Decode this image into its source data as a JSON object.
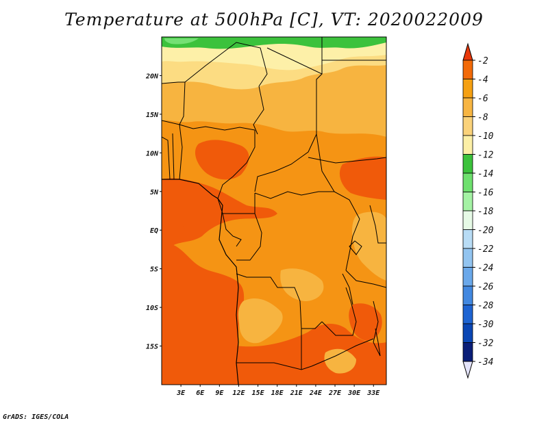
{
  "title": "Temperature at 500hPa [C], VT: 2020022009",
  "footer": "GrADS: IGES/COLA",
  "map": {
    "lat_range": [
      -20,
      25
    ],
    "lon_range": [
      0,
      35
    ],
    "lat_labels": [
      {
        "lat": 20,
        "text": "20N"
      },
      {
        "lat": 15,
        "text": "15N"
      },
      {
        "lat": 10,
        "text": "10N"
      },
      {
        "lat": 5,
        "text": "5N"
      },
      {
        "lat": 0,
        "text": "EQ"
      },
      {
        "lat": -5,
        "text": "5S"
      },
      {
        "lat": -10,
        "text": "10S"
      },
      {
        "lat": -15,
        "text": "15S"
      }
    ],
    "lon_labels": [
      {
        "lon": 3,
        "text": "3E"
      },
      {
        "lon": 6,
        "text": "6E"
      },
      {
        "lon": 9,
        "text": "9E"
      },
      {
        "lon": 12,
        "text": "12E"
      },
      {
        "lon": 15,
        "text": "15E"
      },
      {
        "lon": 18,
        "text": "18E"
      },
      {
        "lon": 21,
        "text": "21E"
      },
      {
        "lon": 24,
        "text": "24E"
      },
      {
        "lon": 27,
        "text": "27E"
      },
      {
        "lon": 30,
        "text": "30E"
      },
      {
        "lon": 33,
        "text": "33E"
      }
    ]
  },
  "colorbar": {
    "labels": [
      "-2",
      "-4",
      "-6",
      "-8",
      "-10",
      "-12",
      "-14",
      "-16",
      "-18",
      "-20",
      "-22",
      "-24",
      "-26",
      "-28",
      "-30",
      "-32",
      "-34"
    ],
    "colors": [
      "#e8380a",
      "#f26a08",
      "#f5a012",
      "#f7b542",
      "#fad27a",
      "#fcefa6",
      "#3cc23c",
      "#6ee06e",
      "#a4f2a4",
      "#e6fae6",
      "#b8dcf5",
      "#92c4f0",
      "#6aa8ea",
      "#4288e0",
      "#1e64d2",
      "#0a46b4",
      "#0a1e78",
      "#e4e4fa"
    ]
  },
  "field_colors": {
    "deep_orange": "#f05a0a",
    "orange": "#f59414",
    "light_orange": "#f7b440",
    "pale_yellow": "#fcdc82",
    "cream": "#fdf0a8",
    "green": "#3cc23c",
    "light_green": "#74e074"
  }
}
